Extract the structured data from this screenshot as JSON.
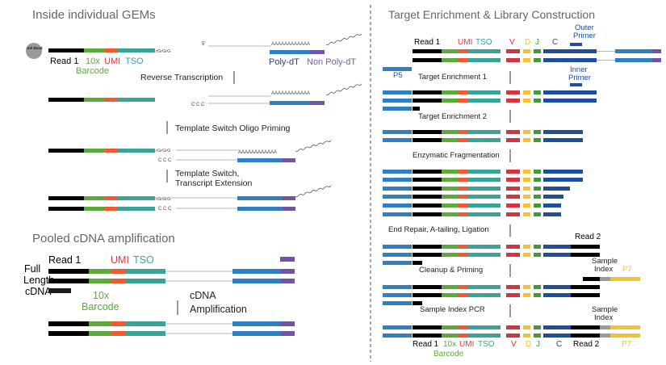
{
  "colors": {
    "black": "#000000",
    "green": "#5aab3c",
    "red": "#e63b3b",
    "orange": "#ef5a35",
    "teal": "#3aa398",
    "blue": "#2f7fc2",
    "purple": "#7254a4",
    "navy": "#1f4e9e",
    "yellow": "#f0c238",
    "darkgreen": "#3f9b3a",
    "crimson": "#d8323e",
    "gray": "#9a9a9a",
    "lightgray": "#b8b8b8",
    "text_gray": "#666666",
    "label_navy": "#2d3f8f",
    "label_purple": "#7a5ba8"
  },
  "left": {
    "section1_title": "Inside individual GEMs",
    "gel_bead_label": "Gel Bead",
    "read1": "Read 1",
    "tenx": "10x",
    "barcode": "Barcode",
    "umi": "UMI",
    "tso": "TSO",
    "rgrgrg": "rGrGrG",
    "five_prime": "5'",
    "a_tail": "AAAAAAAAAAAA",
    "poly_dt": "Poly-dT",
    "non_poly_dt": "Non Poly-dT",
    "ccc": "C C C",
    "step_rt": "Reverse Transcription",
    "step_tso_priming": "Template Switch Oligo Priming",
    "step_ts_line1": "Template Switch,",
    "step_ts_line2": "Transcript Extension",
    "section2_title": "Pooled cDNA amplification",
    "full_line1": "Full",
    "full_line2": "Length",
    "full_line3": "cDNA",
    "cdna_amp_line1": "cDNA",
    "cdna_amp_line2": "Amplification"
  },
  "right": {
    "title": "Target Enrichment & Library Construction",
    "read1": "Read 1",
    "umi": "UMI",
    "tso": "TSO",
    "v": "V",
    "d": "D",
    "j": "J",
    "c": "C",
    "outer_primer_1": "Outer",
    "outer_primer_2": "Primer",
    "inner_primer_1": "Inner",
    "inner_primer_2": "Primer",
    "p5": "P5",
    "step_te1": "Target Enrichment 1",
    "step_te2": "Target Enrichment 2",
    "step_frag": "Enzymatic Fragmentation",
    "step_endrepair": "End Repair, A-tailing, Ligation",
    "read2": "Read 2",
    "sample_index_1": "Sample",
    "sample_index_2": "Index",
    "p7": "P7",
    "step_cleanup": "Cleanup & Priming",
    "step_pcr": "Sample Index PCR",
    "bottom_read1": "Read 1",
    "bottom_10x": "10x",
    "bottom_umi": "UMI",
    "bottom_tso": "TSO",
    "bottom_barcode": "Barcode",
    "bottom_v": "V",
    "bottom_d": "D",
    "bottom_j": "J",
    "bottom_c": "C",
    "bottom_read2": "Read 2",
    "bottom_p7": "P7"
  }
}
